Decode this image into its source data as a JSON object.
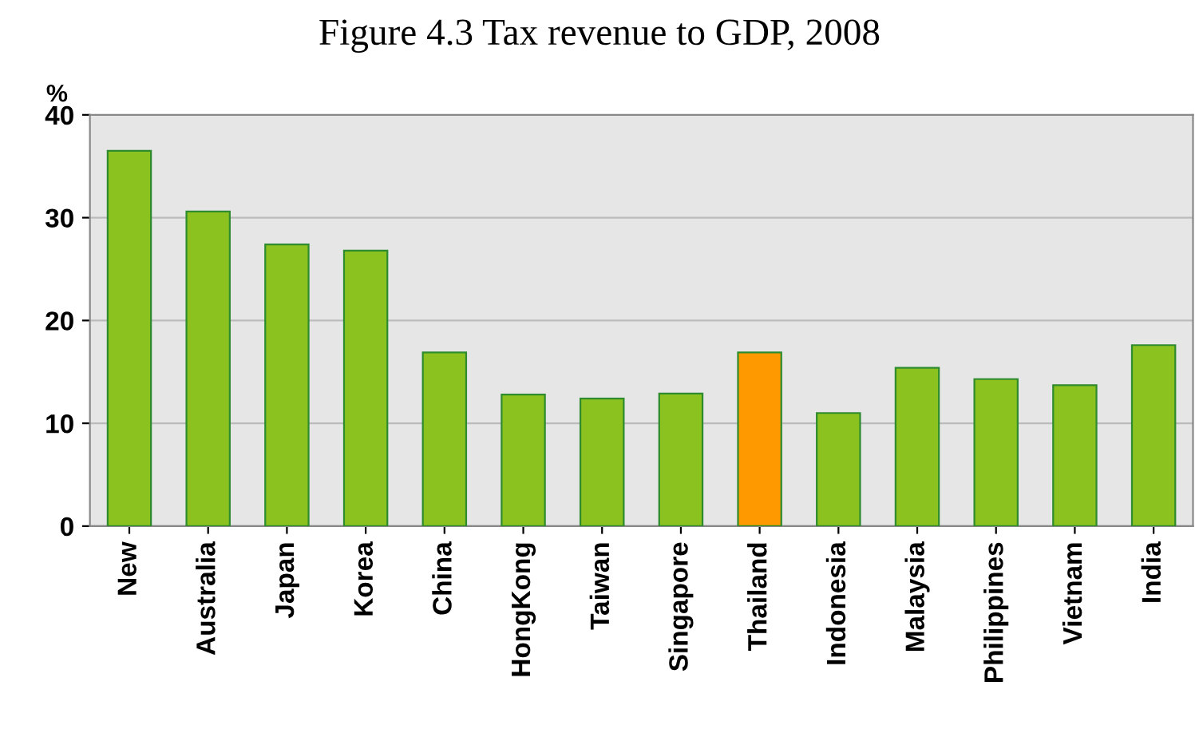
{
  "chart_data": {
    "type": "bar",
    "title": "Figure 4.3 Tax revenue to GDP, 2008",
    "ylabel": "%",
    "categories": [
      "New",
      "Australia",
      "Japan",
      "Korea",
      "China",
      "HongKong",
      "Taiwan",
      "Singapore",
      "Thailand",
      "Indonesia",
      "Malaysia",
      "Philippines",
      "Vietnam",
      "India"
    ],
    "values": [
      36.5,
      30.6,
      27.4,
      26.8,
      16.9,
      12.8,
      12.4,
      12.9,
      16.9,
      11.0,
      15.4,
      14.3,
      13.7,
      17.6
    ],
    "colors": [
      "#8cc21f",
      "#8cc21f",
      "#8cc21f",
      "#8cc21f",
      "#8cc21f",
      "#8cc21f",
      "#8cc21f",
      "#8cc21f",
      "#ff9900",
      "#8cc21f",
      "#8cc21f",
      "#8cc21f",
      "#8cc21f",
      "#8cc21f"
    ],
    "ylim": [
      0,
      40
    ],
    "yticks": [
      0,
      10,
      20,
      30,
      40
    ],
    "grid": "y"
  }
}
